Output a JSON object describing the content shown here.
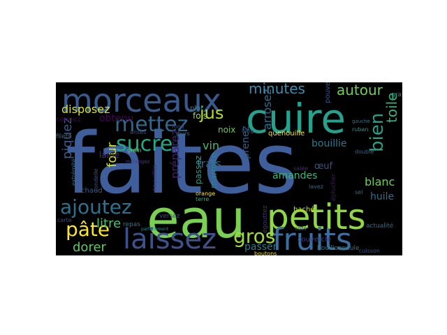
{
  "word_cloud": {
    "background": "#000000",
    "words": [
      {
        "text": "faites",
        "color": "#3e5f9c"
      },
      {
        "text": "eau",
        "color": "#7ad151"
      },
      {
        "text": "cuire",
        "color": "#25a18e"
      },
      {
        "text": "petits",
        "color": "#8fd744"
      },
      {
        "text": "morceaux",
        "color": "#38598c"
      },
      {
        "text": "fruits",
        "color": "#3b6fa1"
      },
      {
        "text": "laissez",
        "color": "#3b528b"
      },
      {
        "text": "mettez",
        "color": "#31688e"
      },
      {
        "text": "ajoutez",
        "color": "#2c728e"
      },
      {
        "text": "sucre",
        "color": "#22a884"
      },
      {
        "text": "pâte",
        "color": "#fde725"
      },
      {
        "text": "gros",
        "color": "#a0da39"
      },
      {
        "text": "minutes",
        "color": "#3a8fb0"
      },
      {
        "text": "autour",
        "color": "#6ece58"
      },
      {
        "text": "jus",
        "color": "#b5de2b"
      },
      {
        "text": "disposez",
        "color": "#dce319"
      },
      {
        "text": "bien",
        "color": "#2a9f88"
      },
      {
        "text": "toile",
        "color": "#2fb47c"
      },
      {
        "text": "dorer",
        "color": "#5ec962"
      },
      {
        "text": "blanc",
        "color": "#6ece58"
      },
      {
        "text": "litre",
        "color": "#4ac16d"
      },
      {
        "text": "four",
        "color": "#d2e21b"
      },
      {
        "text": "piquez",
        "color": "#3b5b8b"
      },
      {
        "text": "frais",
        "color": "#33638d"
      },
      {
        "text": "vin",
        "color": "#40bd72"
      },
      {
        "text": "préparez",
        "color": "#481f70"
      },
      {
        "text": "amandes",
        "color": "#37b878"
      },
      {
        "text": "arrosez",
        "color": "#2e6e8e"
      },
      {
        "text": "bouillie",
        "color": "#29798e"
      },
      {
        "text": "huile",
        "color": "#2d708e"
      },
      {
        "text": "prenez",
        "color": "#355f8d"
      },
      {
        "text": "passer",
        "color": "#287c8e"
      },
      {
        "text": "marmite",
        "color": "#238a8d"
      },
      {
        "text": "fois",
        "color": "#a5db36"
      },
      {
        "text": "noix",
        "color": "#6ccd5a"
      },
      {
        "text": "œuf",
        "color": "#3a548c"
      },
      {
        "text": "obtenu",
        "color": "#440154"
      },
      {
        "text": "laine",
        "color": "#463480"
      },
      {
        "text": "plat",
        "color": "#26828e"
      },
      {
        "text": "passez",
        "color": "#1f9e89"
      },
      {
        "text": "quenouille",
        "color": "#fde725"
      },
      {
        "text": "pouvez",
        "color": "#3b528b"
      },
      {
        "text": "côté",
        "color": "#414487"
      },
      {
        "text": "haché",
        "color": "#c8e020"
      },
      {
        "text": "bouillonnoule",
        "color": "#2a788e"
      },
      {
        "text": "couvercle",
        "color": "#443a83"
      },
      {
        "text": "boutons",
        "color": "#fde725"
      },
      {
        "text": "extrémité",
        "color": "#2c728e"
      },
      {
        "text": "chaud",
        "color": "#355f8d"
      },
      {
        "text": "repas",
        "color": "#2a788e"
      },
      {
        "text": "versez",
        "color": "#3b528b"
      },
      {
        "text": "coupez",
        "color": "#440154"
      },
      {
        "text": "filets",
        "color": "#31688e"
      },
      {
        "text": "anses",
        "color": "#3e4989"
      },
      {
        "text": "grain",
        "color": "#5ec962"
      },
      {
        "text": "rondelle",
        "color": "#3b528b"
      },
      {
        "text": "mélangez",
        "color": "#433e85"
      },
      {
        "text": "jours",
        "color": "#2d708e"
      },
      {
        "text": "fond",
        "color": "#3f4788"
      },
      {
        "text": "orange",
        "color": "#fde725"
      },
      {
        "text": "long",
        "color": "#355f8d"
      },
      {
        "text": "terre",
        "color": "#29af7f"
      },
      {
        "text": "lavez",
        "color": "#31688e"
      },
      {
        "text": "égouttez",
        "color": "#46327e"
      },
      {
        "text": "ruban",
        "color": "#1f968b"
      },
      {
        "text": "double",
        "color": "#33638d"
      },
      {
        "text": "cuisson",
        "color": "#39568c"
      },
      {
        "text": "gauche",
        "color": "#2a788e"
      },
      {
        "text": "gras",
        "color": "#25848e"
      },
      {
        "text": "sel",
        "color": "#2c728e"
      },
      {
        "text": "salée",
        "color": "#482878"
      },
      {
        "text": "éplucher",
        "color": "#471365"
      },
      {
        "text": "actualité",
        "color": "#2f6c8e"
      },
      {
        "text": "nouvelles",
        "color": "#443a83"
      },
      {
        "text": "parfaitement",
        "color": "#21918c"
      },
      {
        "text": "carte",
        "color": "#3e4989"
      }
    ]
  }
}
